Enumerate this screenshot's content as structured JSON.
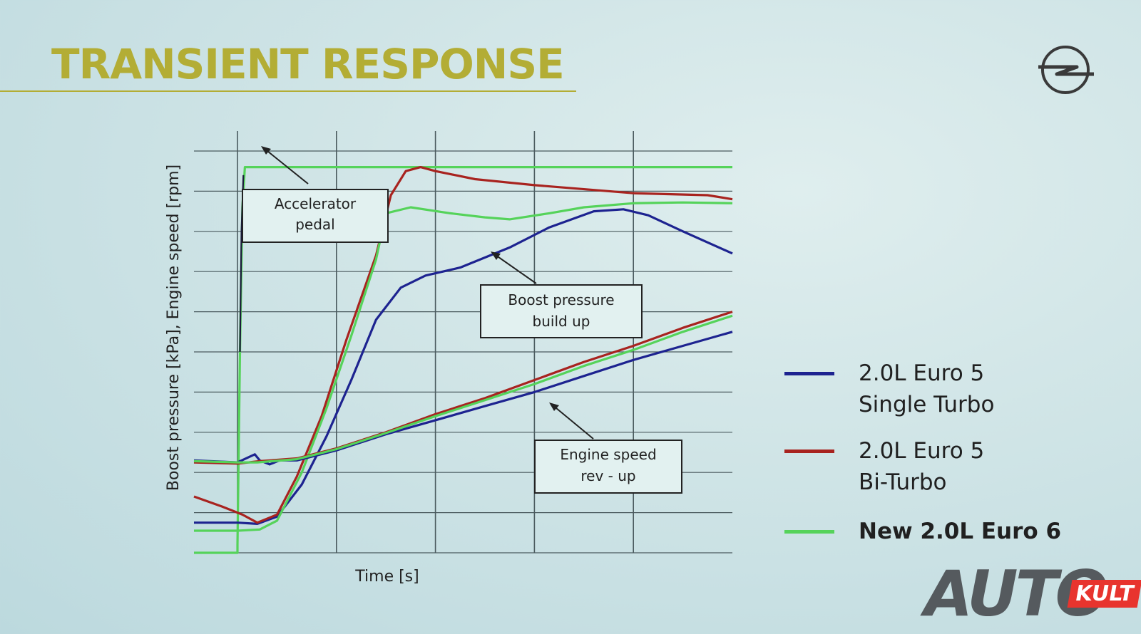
{
  "slide": {
    "title": "TRANSIENT RESPONSE"
  },
  "colors": {
    "title": "#b3ad35",
    "single_turbo": "#1d2390",
    "bi_turbo": "#a8231f",
    "euro6": "#55d35a",
    "background": "#cfe4e6"
  },
  "legend": [
    {
      "id": "single_turbo",
      "label": "2.0L Euro 5\nSingle Turbo",
      "color": "#1d2390"
    },
    {
      "id": "bi_turbo",
      "label": "2.0L Euro 5\nBi-Turbo",
      "color": "#a8231f"
    },
    {
      "id": "euro6",
      "label": "New 2.0L Euro 6",
      "color": "#55d35a"
    }
  ],
  "annotations": {
    "accelerator": "Accelerator\npedal",
    "boost": "Boost pressure\nbuild up",
    "engine": "Engine speed\nrev - up"
  },
  "watermark": {
    "auto": "AUTO",
    "kult": "KULT"
  },
  "chart_data": {
    "type": "line",
    "xlabel": "Time [s]",
    "ylabel": "Boost pressure [kPa], Engine speed [rpm]",
    "xlim": [
      0,
      10
    ],
    "ylim": [
      0,
      10
    ],
    "grid": true,
    "x_ticks": [
      0,
      2,
      4,
      6,
      8,
      10
    ],
    "y_ticks": [
      0,
      1,
      2,
      3,
      4,
      5,
      6,
      7,
      8,
      9,
      10
    ],
    "series": [
      {
        "key": "euro6_pedal",
        "name": "New 2.0L Euro 6",
        "role": "Accelerator pedal",
        "color": "#55d35a",
        "points": [
          [
            -0.85,
            0
          ],
          [
            0,
            0
          ],
          [
            0,
            0.2
          ],
          [
            0.05,
            5.0
          ],
          [
            0.1,
            8.6
          ],
          [
            0.15,
            9.6
          ],
          [
            10,
            9.6
          ]
        ]
      },
      {
        "key": "euro5_pedal",
        "name": "2.0L Euro 5",
        "role": "Accelerator pedal",
        "color": "#1a1a3a",
        "points": [
          [
            0.05,
            5.0
          ],
          [
            0.08,
            8.0
          ],
          [
            0.12,
            9.4
          ]
        ]
      },
      {
        "key": "single_boost",
        "name": "2.0L Euro 5 Single Turbo",
        "role": "Boost pressure",
        "color": "#1d2390",
        "points": [
          [
            -0.85,
            0.75
          ],
          [
            0,
            0.75
          ],
          [
            0.4,
            0.72
          ],
          [
            0.8,
            0.9
          ],
          [
            1.3,
            1.7
          ],
          [
            1.8,
            2.9
          ],
          [
            2.3,
            4.3
          ],
          [
            2.8,
            5.8
          ],
          [
            3.3,
            6.6
          ],
          [
            3.8,
            6.9
          ],
          [
            4.5,
            7.1
          ],
          [
            5.5,
            7.6
          ],
          [
            6.3,
            8.1
          ],
          [
            7.2,
            8.5
          ],
          [
            7.8,
            8.55
          ],
          [
            8.3,
            8.4
          ],
          [
            9.0,
            8.0
          ],
          [
            10,
            7.45
          ]
        ]
      },
      {
        "key": "bi_boost",
        "name": "2.0L Euro 5 Bi-Turbo",
        "role": "Boost pressure",
        "color": "#a8231f",
        "points": [
          [
            -0.85,
            1.4
          ],
          [
            -0.3,
            1.15
          ],
          [
            0.1,
            0.95
          ],
          [
            0.4,
            0.75
          ],
          [
            0.8,
            0.95
          ],
          [
            1.2,
            1.9
          ],
          [
            1.7,
            3.4
          ],
          [
            2.2,
            5.3
          ],
          [
            2.8,
            7.4
          ],
          [
            3.1,
            8.9
          ],
          [
            3.4,
            9.5
          ],
          [
            3.7,
            9.6
          ],
          [
            4.0,
            9.5
          ],
          [
            4.8,
            9.3
          ],
          [
            6,
            9.15
          ],
          [
            8,
            8.95
          ],
          [
            9.5,
            8.9
          ],
          [
            10,
            8.8
          ]
        ]
      },
      {
        "key": "euro6_boost",
        "name": "New 2.0L Euro 6",
        "role": "Boost pressure",
        "color": "#55d35a",
        "points": [
          [
            -0.85,
            0.55
          ],
          [
            0,
            0.55
          ],
          [
            0.45,
            0.58
          ],
          [
            0.8,
            0.8
          ],
          [
            1.3,
            2.0
          ],
          [
            1.8,
            3.6
          ],
          [
            2.3,
            5.4
          ],
          [
            2.8,
            7.3
          ],
          [
            3.0,
            8.45
          ],
          [
            3.5,
            8.6
          ],
          [
            4.3,
            8.45
          ],
          [
            5,
            8.35
          ],
          [
            5.5,
            8.3
          ],
          [
            6.3,
            8.45
          ],
          [
            7,
            8.6
          ],
          [
            8,
            8.7
          ],
          [
            9,
            8.72
          ],
          [
            10,
            8.7
          ]
        ]
      },
      {
        "key": "single_rpm",
        "name": "2.0L Euro 5 Single Turbo",
        "role": "Engine speed",
        "color": "#1d2390",
        "points": [
          [
            -0.85,
            2.3
          ],
          [
            0,
            2.25
          ],
          [
            0.35,
            2.45
          ],
          [
            0.45,
            2.3
          ],
          [
            0.65,
            2.2
          ],
          [
            0.85,
            2.3
          ],
          [
            1.2,
            2.3
          ],
          [
            2,
            2.55
          ],
          [
            3,
            2.95
          ],
          [
            4,
            3.3
          ],
          [
            5,
            3.65
          ],
          [
            6,
            4.0
          ],
          [
            7,
            4.4
          ],
          [
            8,
            4.8
          ],
          [
            9,
            5.15
          ],
          [
            10,
            5.5
          ]
        ]
      },
      {
        "key": "bi_rpm",
        "name": "2.0L Euro 5 Bi-Turbo",
        "role": "Engine speed",
        "color": "#a8231f",
        "points": [
          [
            -0.85,
            2.25
          ],
          [
            0,
            2.22
          ],
          [
            0.45,
            2.28
          ],
          [
            1.2,
            2.35
          ],
          [
            2,
            2.6
          ],
          [
            3,
            3.0
          ],
          [
            4,
            3.45
          ],
          [
            5,
            3.85
          ],
          [
            6,
            4.3
          ],
          [
            7,
            4.75
          ],
          [
            8,
            5.15
          ],
          [
            9,
            5.6
          ],
          [
            10,
            6.0
          ]
        ]
      },
      {
        "key": "euro6_rpm",
        "name": "New 2.0L Euro 6",
        "role": "Engine speed",
        "color": "#55d35a",
        "points": [
          [
            -0.85,
            2.28
          ],
          [
            0,
            2.25
          ],
          [
            0.4,
            2.25
          ],
          [
            1.2,
            2.33
          ],
          [
            2,
            2.58
          ],
          [
            3,
            2.98
          ],
          [
            4,
            3.4
          ],
          [
            5,
            3.8
          ],
          [
            6,
            4.2
          ],
          [
            7,
            4.65
          ],
          [
            8,
            5.05
          ],
          [
            9,
            5.5
          ],
          [
            10,
            5.9
          ]
        ]
      }
    ]
  }
}
